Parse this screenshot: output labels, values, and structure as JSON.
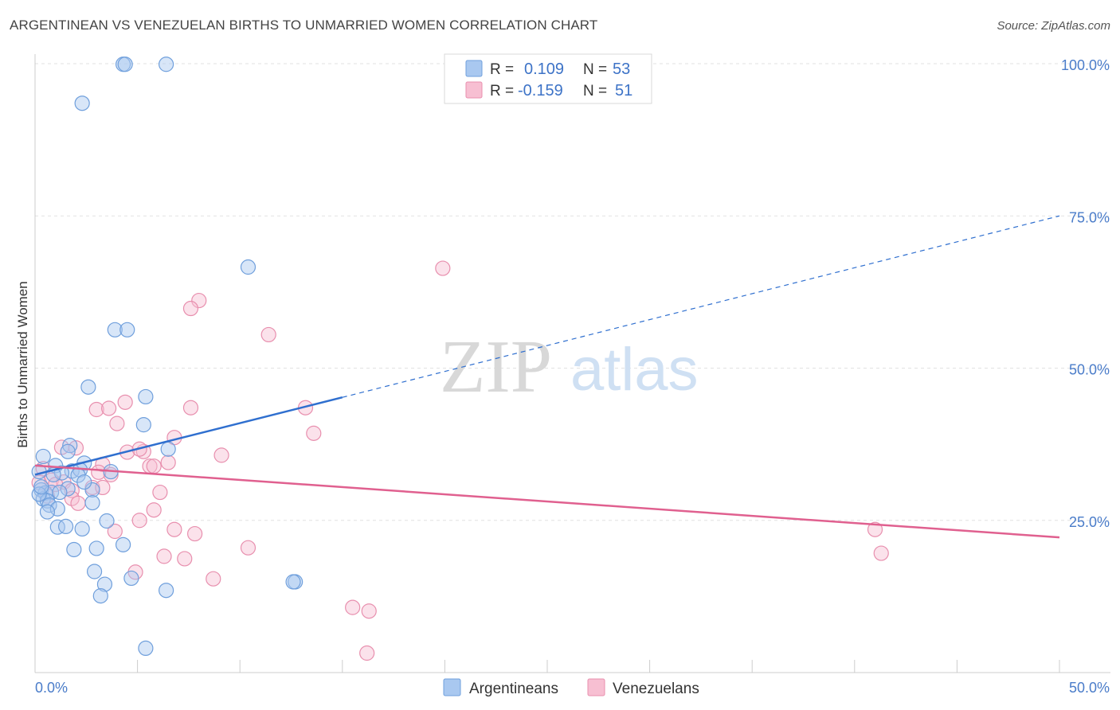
{
  "header": {
    "title": "ARGENTINEAN VS VENEZUELAN BIRTHS TO UNMARRIED WOMEN CORRELATION CHART",
    "source": "Source: ZipAtlas.com"
  },
  "watermark": {
    "zip": "ZIP",
    "atlas": "atlas"
  },
  "colors": {
    "argentineans_fill": "#a9c8f0",
    "argentineans_stroke": "#6f9fdc",
    "argentineans_line": "#2f6fcf",
    "venezuelans_fill": "#f7bfd2",
    "venezuelans_stroke": "#e88fae",
    "venezuelans_line": "#e0608f",
    "tick_color": "#4a7cc9"
  },
  "chart_data": {
    "type": "scatter",
    "title": "ARGENTINEAN VS VENEZUELAN BIRTHS TO UNMARRIED WOMEN CORRELATION CHART",
    "ylabel": "Births to Unmarried Women",
    "xlabel": "",
    "xlim": [
      0,
      50
    ],
    "ylim": [
      0,
      102
    ],
    "x_tick_labels": [
      "0.0%",
      "50.0%"
    ],
    "y_ticks": [
      25,
      50,
      75,
      100
    ],
    "y_tick_labels": [
      "25.0%",
      "50.0%",
      "75.0%",
      "100.0%"
    ],
    "grid": true,
    "legend": {
      "r_label": "R =",
      "n_label": "N =",
      "entries": [
        {
          "name": "Argentineans",
          "r": "0.109",
          "n": "53"
        },
        {
          "name": "Venezuelans",
          "r": "-0.159",
          "n": "51"
        }
      ]
    },
    "series": [
      {
        "name": "Argentineans",
        "trend": {
          "x0": 0,
          "y0": 32.5,
          "x1": 15,
          "y1": 45.2,
          "dashed_to_x": 50,
          "dashed_to_y": 75
        },
        "points": [
          [
            4.3,
            99.9
          ],
          [
            4.4,
            99.9
          ],
          [
            6.4,
            99.9
          ],
          [
            2.3,
            93.5
          ],
          [
            10.4,
            66.6
          ],
          [
            3.9,
            56.3
          ],
          [
            4.5,
            56.3
          ],
          [
            2.6,
            46.9
          ],
          [
            5.4,
            45.3
          ],
          [
            5.3,
            40.7
          ],
          [
            1.7,
            37.3
          ],
          [
            1.6,
            36.3
          ],
          [
            0.4,
            35.5
          ],
          [
            1.0,
            34.0
          ],
          [
            2.4,
            34.4
          ],
          [
            3.7,
            33.0
          ],
          [
            1.8,
            33.1
          ],
          [
            2.2,
            33.3
          ],
          [
            1.3,
            32.8
          ],
          [
            0.9,
            32.5
          ],
          [
            2.1,
            32.4
          ],
          [
            0.2,
            33.0
          ],
          [
            0.3,
            30.0
          ],
          [
            0.5,
            29.5
          ],
          [
            0.8,
            29.6
          ],
          [
            1.6,
            30.2
          ],
          [
            2.8,
            30.0
          ],
          [
            0.4,
            28.5
          ],
          [
            0.6,
            28.2
          ],
          [
            0.7,
            27.5
          ],
          [
            1.1,
            26.9
          ],
          [
            2.8,
            27.9
          ],
          [
            0.6,
            26.4
          ],
          [
            6.5,
            36.7
          ],
          [
            2.4,
            31.3
          ],
          [
            3.5,
            24.9
          ],
          [
            1.1,
            23.9
          ],
          [
            1.5,
            24.0
          ],
          [
            2.3,
            23.6
          ],
          [
            1.9,
            20.2
          ],
          [
            3.0,
            20.4
          ],
          [
            4.3,
            21.0
          ],
          [
            2.9,
            16.6
          ],
          [
            3.4,
            14.5
          ],
          [
            4.7,
            15.5
          ],
          [
            3.2,
            12.6
          ],
          [
            6.4,
            13.5
          ],
          [
            12.7,
            14.9
          ],
          [
            12.6,
            14.9
          ],
          [
            5.4,
            4.0
          ],
          [
            0.2,
            29.3
          ],
          [
            0.3,
            30.5
          ],
          [
            1.2,
            29.6
          ]
        ]
      },
      {
        "name": "Venezuelans",
        "trend": {
          "x0": 0,
          "y0": 34.0,
          "x1": 50,
          "y1": 22.2
        },
        "points": [
          [
            19.9,
            66.4
          ],
          [
            8.0,
            61.1
          ],
          [
            7.6,
            59.8
          ],
          [
            11.4,
            55.5
          ],
          [
            4.4,
            44.4
          ],
          [
            3.0,
            43.2
          ],
          [
            3.6,
            43.4
          ],
          [
            7.6,
            43.5
          ],
          [
            13.2,
            43.5
          ],
          [
            4.0,
            40.9
          ],
          [
            13.6,
            39.3
          ],
          [
            6.8,
            38.6
          ],
          [
            2.0,
            36.9
          ],
          [
            4.5,
            36.2
          ],
          [
            5.3,
            36.3
          ],
          [
            9.1,
            35.7
          ],
          [
            5.1,
            36.7
          ],
          [
            1.3,
            37.0
          ],
          [
            6.5,
            34.5
          ],
          [
            3.3,
            34.2
          ],
          [
            5.6,
            33.9
          ],
          [
            5.8,
            33.9
          ],
          [
            0.4,
            33.5
          ],
          [
            3.7,
            32.5
          ],
          [
            3.1,
            32.9
          ],
          [
            0.8,
            31.6
          ],
          [
            1.4,
            31.3
          ],
          [
            2.8,
            30.4
          ],
          [
            3.3,
            30.4
          ],
          [
            6.1,
            29.6
          ],
          [
            0.6,
            29.0
          ],
          [
            1.8,
            29.9
          ],
          [
            1.8,
            28.6
          ],
          [
            2.1,
            27.8
          ],
          [
            5.8,
            26.7
          ],
          [
            5.1,
            25.0
          ],
          [
            3.9,
            23.2
          ],
          [
            6.8,
            23.5
          ],
          [
            7.8,
            22.8
          ],
          [
            10.4,
            20.5
          ],
          [
            6.3,
            19.1
          ],
          [
            7.3,
            18.7
          ],
          [
            4.9,
            16.5
          ],
          [
            8.7,
            15.4
          ],
          [
            15.5,
            10.7
          ],
          [
            16.3,
            10.1
          ],
          [
            16.2,
            3.2
          ],
          [
            41.0,
            23.5
          ],
          [
            41.3,
            19.6
          ],
          [
            0.2,
            31.2
          ],
          [
            1.0,
            30.9
          ]
        ]
      }
    ]
  }
}
